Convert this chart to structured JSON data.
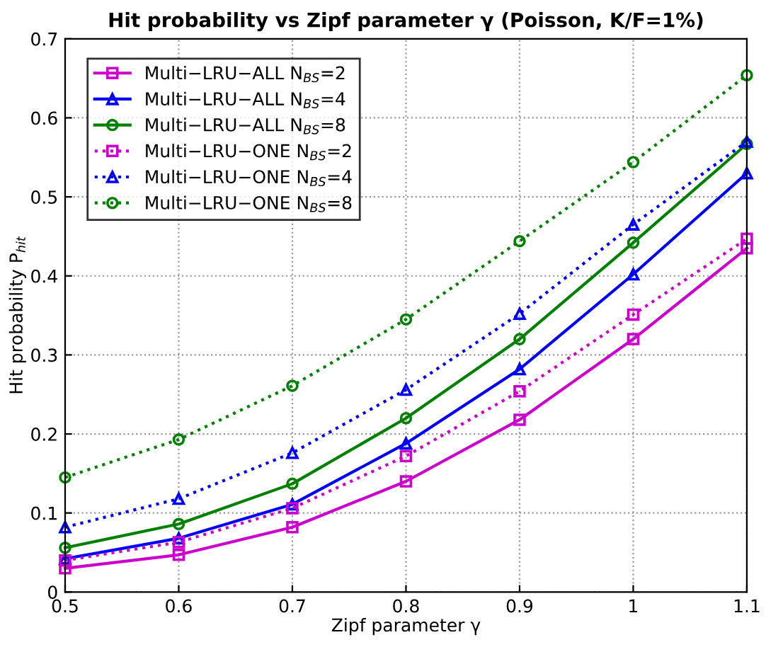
{
  "chart_data": {
    "type": "line",
    "title": "Hit probability vs Zipf parameter γ (Poisson, K/F=1%)",
    "xlabel": "Zipf parameter γ",
    "ylabel": "Hit probability P$_{hit}$",
    "x": [
      0.5,
      0.6,
      0.7,
      0.8,
      0.9,
      1.0,
      1.1
    ],
    "xlim": [
      0.5,
      1.1
    ],
    "xticks": [
      0.5,
      0.6,
      0.7,
      0.8,
      0.9,
      1,
      1.1
    ],
    "ylim": [
      0,
      0.7
    ],
    "yticks": [
      0,
      0.1,
      0.2,
      0.3,
      0.4,
      0.5,
      0.6,
      0.7
    ],
    "grid": true,
    "legend": "top left",
    "series": [
      {
        "name": "Multi−LRU−ALL N$_{BS}$=2",
        "color": "#cc00cc",
        "marker": "square",
        "line_style": "solid",
        "values": [
          0.03,
          0.047,
          0.082,
          0.14,
          0.218,
          0.32,
          0.435
        ]
      },
      {
        "name": "Multi−LRU−ALL N$_{BS}$=4",
        "color": "#0000ff",
        "marker": "triangle",
        "line_style": "solid",
        "values": [
          0.042,
          0.068,
          0.111,
          0.188,
          0.282,
          0.402,
          0.53
        ]
      },
      {
        "name": "Multi−LRU−ALL N$_{BS}$=8",
        "color": "#008000",
        "marker": "circle",
        "line_style": "solid",
        "values": [
          0.056,
          0.086,
          0.137,
          0.22,
          0.32,
          0.442,
          0.567
        ]
      },
      {
        "name": "Multi−LRU−ONE N$_{BS}$=2",
        "color": "#cc00cc",
        "marker": "square",
        "line_style": "dotted",
        "values": [
          0.04,
          0.063,
          0.106,
          0.172,
          0.254,
          0.351,
          0.447
        ]
      },
      {
        "name": "Multi−LRU−ONE N$_{BS}$=4",
        "color": "#0000ff",
        "marker": "triangle",
        "line_style": "dotted",
        "values": [
          0.082,
          0.118,
          0.176,
          0.256,
          0.352,
          0.465,
          0.57
        ]
      },
      {
        "name": "Multi−LRU−ONE N$_{BS}$=8",
        "color": "#008000",
        "marker": "circle",
        "line_style": "dotted",
        "values": [
          0.145,
          0.193,
          0.261,
          0.345,
          0.444,
          0.544,
          0.654
        ]
      }
    ]
  }
}
